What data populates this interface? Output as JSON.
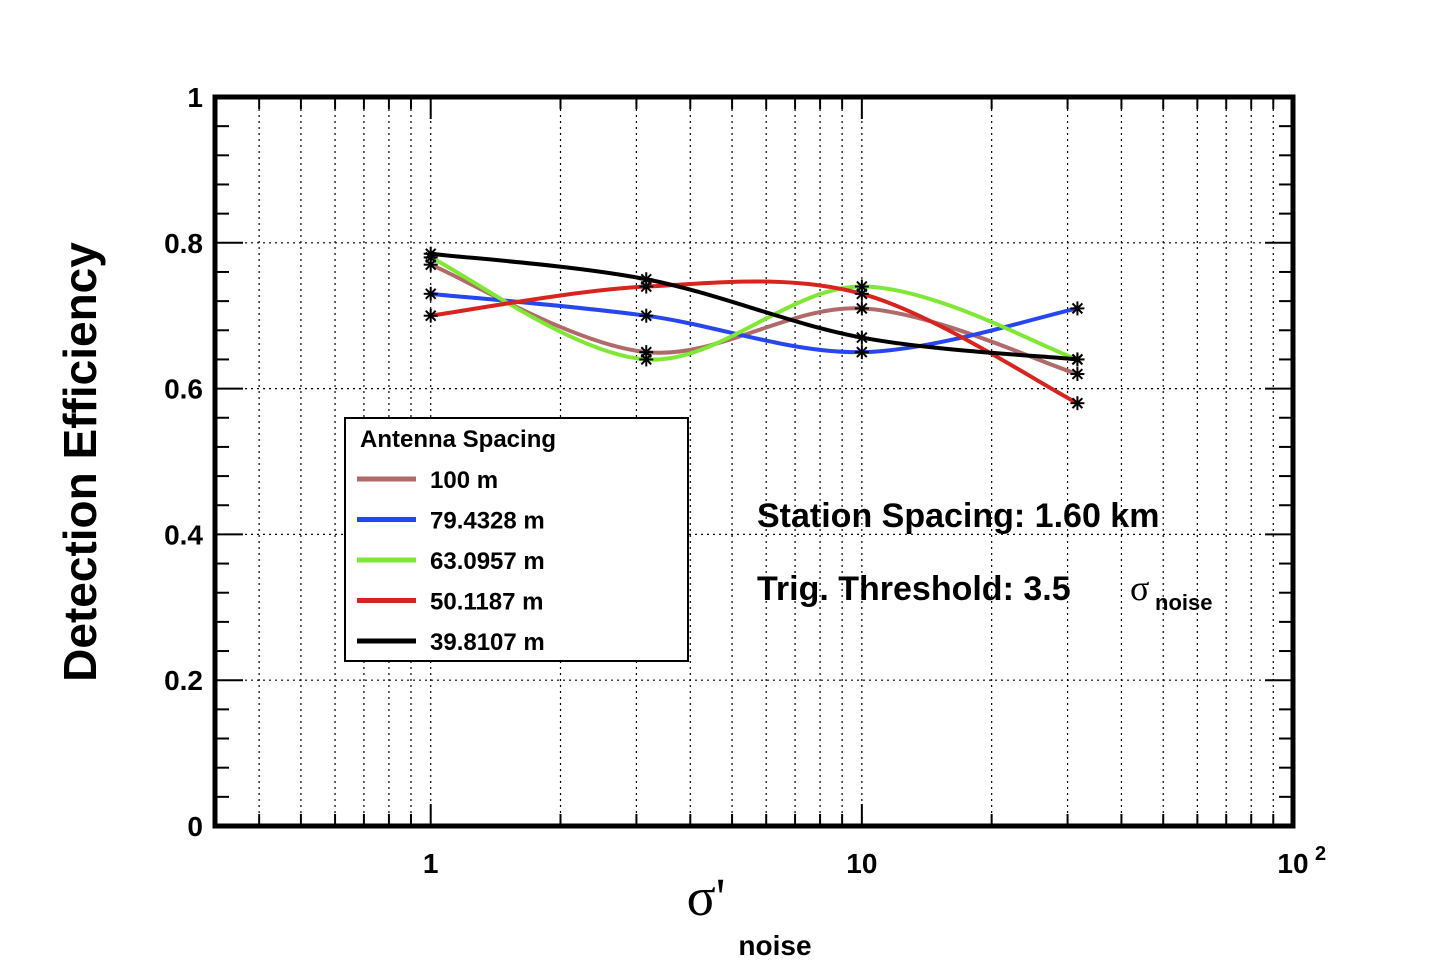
{
  "chart_data": {
    "type": "line",
    "x_scale": "log",
    "xlim": [
      0.316,
      100
    ],
    "ylim": [
      0,
      1
    ],
    "grid": true,
    "ylabel": "Detection Efficiency",
    "xlabel": {
      "symbol": "σ'",
      "subscript": "noise"
    },
    "x_ticks": [
      {
        "value": 1,
        "label": "1",
        "sup": ""
      },
      {
        "value": 10,
        "label": "10",
        "sup": ""
      },
      {
        "value": 100,
        "label": "10",
        "sup": "2"
      }
    ],
    "y_ticks": [
      {
        "value": 0,
        "label": "0"
      },
      {
        "value": 0.2,
        "label": "0.2"
      },
      {
        "value": 0.4,
        "label": "0.4"
      },
      {
        "value": 0.6,
        "label": "0.6"
      },
      {
        "value": 0.8,
        "label": "0.8"
      },
      {
        "value": 1,
        "label": "1"
      }
    ],
    "x": [
      1,
      3.162,
      10,
      31.62
    ],
    "legend_title": "Antenna Spacing",
    "legend_position": "center-left",
    "series": [
      {
        "name": "100 m",
        "color": "#b06a6a",
        "values": [
          0.77,
          0.65,
          0.71,
          0.62
        ]
      },
      {
        "name": "79.4328 m",
        "color": "#2646f0",
        "values": [
          0.73,
          0.7,
          0.65,
          0.71
        ]
      },
      {
        "name": "63.0957 m",
        "color": "#7fe834",
        "values": [
          0.78,
          0.64,
          0.74,
          0.64
        ]
      },
      {
        "name": "50.1187 m",
        "color": "#d8231f",
        "values": [
          0.7,
          0.74,
          0.73,
          0.58
        ]
      },
      {
        "name": "39.8107 m",
        "color": "#000000",
        "values": [
          0.785,
          0.75,
          0.67,
          0.64
        ]
      }
    ],
    "annotations": {
      "station_spacing": "Station Spacing: 1.60 km",
      "trig_threshold_prefix": "Trig. Threshold: 3.5",
      "trig_threshold_symbol": "σ",
      "trig_threshold_sub": "noise"
    }
  }
}
